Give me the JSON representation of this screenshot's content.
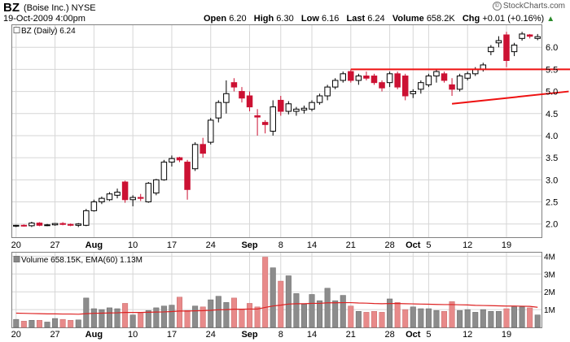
{
  "header": {
    "symbol": "BZ",
    "company": "(Boise Inc.) NYSE",
    "datetime": "19-Oct-2009 4:00pm",
    "open_label": "Open",
    "open": "6.20",
    "high_label": "High",
    "high": "6.30",
    "low_label": "Low",
    "low": "6.16",
    "last_label": "Last",
    "last": "6.24",
    "volume_label": "Volume",
    "volume": "658.2K",
    "chg_label": "Chg",
    "chg": "+0.01 (+0.16%)",
    "chg_arrow": "▲"
  },
  "logo": {
    "text": "StockCharts.com",
    "icon": "copyright-icon"
  },
  "price_legend": "BZ (Daily) 6.24",
  "volume_legend": "Volume 658.15K, EMA(60) 1.13M",
  "colors": {
    "up": "#ffffff",
    "down": "#cc1133",
    "outline": "#000000",
    "trend": "#ee1111",
    "vol_up": "#8c8c8c",
    "vol_down": "#e88a8a",
    "ema": "#dd2222"
  },
  "chart_data": [
    {
      "type": "candlestick",
      "title": "BZ (Daily) 6.24",
      "ylim": [
        1.7,
        6.5
      ],
      "y_ticks": [
        "2.0",
        "2.5",
        "3.0",
        "3.5",
        "4.0",
        "4.5",
        "5.0",
        "5.5",
        "6.0"
      ],
      "x_ticks": [
        {
          "label": "20",
          "i": 0,
          "bold": false
        },
        {
          "label": "27",
          "i": 5,
          "bold": false
        },
        {
          "label": "Aug",
          "i": 10,
          "bold": true
        },
        {
          "label": "10",
          "i": 15,
          "bold": false
        },
        {
          "label": "17",
          "i": 20,
          "bold": false
        },
        {
          "label": "24",
          "i": 25,
          "bold": false
        },
        {
          "label": "Sep",
          "i": 30,
          "bold": true
        },
        {
          "label": "8",
          "i": 34,
          "bold": false
        },
        {
          "label": "14",
          "i": 38,
          "bold": false
        },
        {
          "label": "21",
          "i": 43,
          "bold": false
        },
        {
          "label": "28",
          "i": 48,
          "bold": false
        },
        {
          "label": "Oct",
          "i": 51,
          "bold": true
        },
        {
          "label": "5",
          "i": 53,
          "bold": false
        },
        {
          "label": "12",
          "i": 58,
          "bold": false
        },
        {
          "label": "19",
          "i": 63,
          "bold": false
        }
      ],
      "ohlc": [
        [
          1.95,
          1.98,
          1.93,
          1.97
        ],
        [
          1.97,
          1.99,
          1.94,
          1.96
        ],
        [
          1.96,
          2.05,
          1.93,
          2.02
        ],
        [
          2.02,
          2.04,
          1.95,
          1.97
        ],
        [
          1.97,
          2.0,
          1.95,
          1.98
        ],
        [
          1.98,
          2.02,
          1.96,
          2.01
        ],
        [
          2.01,
          2.04,
          1.97,
          1.99
        ],
        [
          1.99,
          2.01,
          1.95,
          1.97
        ],
        [
          1.97,
          2.02,
          1.93,
          2.0
        ],
        [
          1.97,
          2.34,
          1.95,
          2.3
        ],
        [
          2.3,
          2.55,
          2.28,
          2.5
        ],
        [
          2.5,
          2.62,
          2.45,
          2.58
        ],
        [
          2.55,
          2.72,
          2.52,
          2.68
        ],
        [
          2.65,
          2.8,
          2.58,
          2.72
        ],
        [
          2.95,
          2.98,
          2.48,
          2.55
        ],
        [
          2.55,
          2.65,
          2.4,
          2.6
        ],
        [
          2.6,
          2.68,
          2.52,
          2.58
        ],
        [
          2.5,
          2.95,
          2.48,
          2.92
        ],
        [
          2.7,
          3.02,
          2.65,
          3.0
        ],
        [
          3.0,
          3.45,
          2.98,
          3.4
        ],
        [
          3.4,
          3.55,
          3.3,
          3.48
        ],
        [
          3.5,
          3.52,
          3.4,
          3.45
        ],
        [
          3.4,
          3.45,
          2.55,
          2.78
        ],
        [
          3.25,
          3.85,
          3.2,
          3.8
        ],
        [
          3.8,
          3.95,
          3.5,
          3.6
        ],
        [
          3.85,
          4.4,
          3.8,
          4.35
        ],
        [
          4.4,
          4.8,
          4.3,
          4.75
        ],
        [
          4.75,
          5.25,
          4.5,
          4.95
        ],
        [
          5.2,
          5.3,
          5.0,
          5.1
        ],
        [
          5.0,
          5.1,
          4.75,
          4.85
        ],
        [
          4.9,
          5.0,
          4.55,
          4.65
        ],
        [
          4.45,
          4.6,
          4.0,
          4.42
        ],
        [
          4.3,
          4.35,
          4.05,
          4.25
        ],
        [
          4.1,
          4.8,
          4.0,
          4.65
        ],
        [
          4.8,
          4.9,
          4.45,
          4.55
        ],
        [
          4.55,
          4.78,
          4.48,
          4.72
        ],
        [
          4.55,
          4.65,
          4.45,
          4.6
        ],
        [
          4.58,
          4.68,
          4.5,
          4.62
        ],
        [
          4.6,
          4.8,
          4.55,
          4.75
        ],
        [
          4.75,
          4.95,
          4.7,
          4.9
        ],
        [
          4.9,
          5.15,
          4.8,
          5.1
        ],
        [
          5.1,
          5.3,
          5.05,
          5.25
        ],
        [
          5.25,
          5.45,
          5.2,
          5.4
        ],
        [
          5.45,
          5.5,
          5.2,
          5.25
        ],
        [
          5.25,
          5.4,
          5.15,
          5.35
        ],
        [
          5.35,
          5.45,
          5.25,
          5.3
        ],
        [
          5.35,
          5.4,
          5.15,
          5.2
        ],
        [
          5.2,
          5.25,
          5.0,
          5.08
        ],
        [
          5.2,
          5.45,
          5.1,
          5.4
        ],
        [
          5.4,
          5.45,
          5.05,
          5.1
        ],
        [
          5.35,
          5.4,
          4.8,
          4.9
        ],
        [
          4.95,
          5.05,
          4.85,
          5.0
        ],
        [
          5.05,
          5.25,
          4.95,
          5.2
        ],
        [
          5.15,
          5.4,
          5.1,
          5.35
        ],
        [
          5.35,
          5.5,
          5.2,
          5.45
        ],
        [
          5.4,
          5.45,
          5.2,
          5.25
        ],
        [
          5.15,
          5.3,
          4.9,
          5.05
        ],
        [
          5.05,
          5.4,
          5.0,
          5.35
        ],
        [
          5.3,
          5.45,
          5.25,
          5.4
        ],
        [
          5.4,
          5.55,
          5.35,
          5.5
        ],
        [
          5.5,
          5.65,
          5.45,
          5.6
        ],
        [
          5.9,
          6.05,
          5.82,
          6.0
        ],
        [
          6.1,
          6.25,
          6.0,
          6.15
        ],
        [
          6.28,
          6.35,
          5.55,
          5.7
        ],
        [
          5.9,
          6.1,
          5.8,
          6.05
        ],
        [
          6.2,
          6.35,
          6.15,
          6.3
        ],
        [
          6.28,
          6.3,
          6.2,
          6.25
        ],
        [
          6.2,
          6.3,
          6.16,
          6.24
        ]
      ],
      "annotations": [
        {
          "type": "trendline",
          "from": [
            43,
            5.5
          ],
          "to": [
            72,
            5.5
          ]
        },
        {
          "type": "trendline",
          "from": [
            56,
            4.72
          ],
          "to": [
            71,
            5.0
          ]
        }
      ]
    },
    {
      "type": "bar",
      "title": "Volume 658.15K, EMA(60) 1.13M",
      "ylim": [
        0,
        4.2
      ],
      "unit": "M",
      "y_ticks": [
        "1M",
        "2M",
        "3M",
        "4M"
      ],
      "volume": [
        0.45,
        0.35,
        0.4,
        0.4,
        0.3,
        0.5,
        0.45,
        0.4,
        0.42,
        1.65,
        1.05,
        1.0,
        1.1,
        1.05,
        1.35,
        0.7,
        0.8,
        0.95,
        1.1,
        1.2,
        1.25,
        1.7,
        0.95,
        1.2,
        1.15,
        1.55,
        1.75,
        1.4,
        1.65,
        1.0,
        1.35,
        1.15,
        3.95,
        3.35,
        2.6,
        2.9,
        1.9,
        1.3,
        1.85,
        1.5,
        2.2,
        1.5,
        1.8,
        1.2,
        0.9,
        0.85,
        0.9,
        0.85,
        1.6,
        1.4,
        1.0,
        1.15,
        1.05,
        1.05,
        0.95,
        0.9,
        1.45,
        0.95,
        1.0,
        0.85,
        1.0,
        0.9,
        0.9,
        1.05,
        1.15,
        1.15,
        1.1,
        0.7
      ],
      "ema": [
        0.8,
        0.79,
        0.78,
        0.77,
        0.76,
        0.76,
        0.75,
        0.75,
        0.74,
        0.77,
        0.79,
        0.8,
        0.81,
        0.82,
        0.84,
        0.84,
        0.84,
        0.85,
        0.86,
        0.87,
        0.89,
        0.92,
        0.92,
        0.93,
        0.94,
        0.96,
        0.99,
        1.0,
        1.02,
        1.02,
        1.03,
        1.03,
        1.12,
        1.2,
        1.25,
        1.31,
        1.33,
        1.33,
        1.35,
        1.35,
        1.38,
        1.38,
        1.39,
        1.39,
        1.37,
        1.36,
        1.34,
        1.33,
        1.34,
        1.34,
        1.33,
        1.32,
        1.31,
        1.3,
        1.29,
        1.28,
        1.28,
        1.27,
        1.26,
        1.24,
        1.23,
        1.22,
        1.21,
        1.2,
        1.2,
        1.19,
        1.18,
        1.13
      ]
    }
  ]
}
